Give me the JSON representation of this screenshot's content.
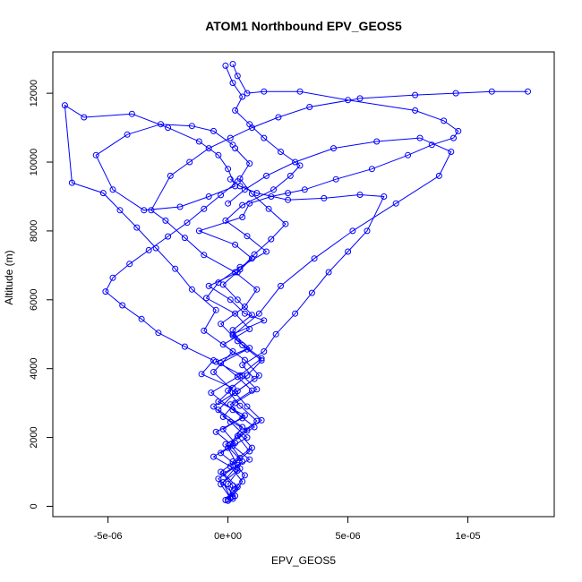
{
  "chart_data": {
    "type": "scatter",
    "title": "ATOM1 Northbound EPV_GEOS5",
    "xlabel": "EPV_GEOS5",
    "ylabel": "Altitude (m)",
    "xlim": [
      -7.3e-06,
      1.36e-05
    ],
    "ylim": [
      -300,
      13200
    ],
    "x_ticks": [
      {
        "value": -5e-06,
        "label": "-5e-06"
      },
      {
        "value": 0,
        "label": "0e+00"
      },
      {
        "value": 5e-06,
        "label": "5e-06"
      },
      {
        "value": 1e-05,
        "label": "1e-05"
      }
    ],
    "y_ticks": [
      {
        "value": 0,
        "label": "0"
      },
      {
        "value": 2000,
        "label": "2000"
      },
      {
        "value": 4000,
        "label": "4000"
      },
      {
        "value": 6000,
        "label": "6000"
      },
      {
        "value": 8000,
        "label": "8000"
      },
      {
        "value": 10000,
        "label": "10000"
      },
      {
        "value": 12000,
        "label": "12000"
      }
    ],
    "grid": false,
    "legend": "none",
    "colors": {
      "series": "#0000ff",
      "axes": "#000000",
      "background": "#ffffff"
    },
    "series": [
      {
        "x": [
          0.0,
          2e-07,
          -3e-07,
          5e-07,
          1e-07,
          8e-07,
          -2e-07,
          3e-07,
          1.2e-06,
          6e-07,
          -5e-07,
          9e-07,
          2e-07,
          1.5e-06,
          7e-07,
          1e-07,
          -8e-07,
          4e-07,
          1e-06,
          3e-07,
          -1.2e-06,
          6e-07,
          9e-07,
          1.8e-06,
          2.5e-06,
          3.2e-06,
          4.5e-06,
          6e-06,
          7.5e-06,
          8.5e-06,
          9.4e-06,
          9.6e-06,
          9e-06,
          7.8e-06,
          5e-06,
          3e-06,
          1.5e-06,
          8e-07,
          4e-07,
          2e-07
        ],
        "y": [
          200,
          600,
          1000,
          1400,
          1800,
          2200,
          2600,
          3000,
          3400,
          3800,
          4200,
          4600,
          5000,
          5400,
          5600,
          6000,
          6400,
          6800,
          7200,
          7600,
          8000,
          8400,
          8800,
          9000,
          9100,
          9200,
          9500,
          9800,
          10200,
          10500,
          10700,
          10900,
          11200,
          11500,
          11800,
          12050,
          12050,
          12000,
          12500,
          12850
        ]
      },
      {
        "x": [
          1e-07,
          -2e-07,
          4e-07,
          0.0,
          6e-07,
          -4e-07,
          3e-07,
          -6e-07,
          2e-07,
          -1e-06,
          -5e-07,
          -1.5e-06,
          -2.2e-06,
          -3e-06,
          -3.8e-06,
          -4.5e-06,
          -5.2e-06,
          -6.5e-06,
          -6.8e-06,
          -6e-06,
          -4e-06,
          -2.5e-06,
          -1.2e-06,
          -4e-07,
          0.0,
          3e-07,
          -8e-07,
          -2e-06,
          -3.5e-06,
          -4.8e-06,
          -5.5e-06,
          -4.2e-06,
          -2.8e-06,
          -1.5e-06,
          -6e-07,
          2e-07
        ],
        "y": [
          250,
          700,
          1200,
          1700,
          2300,
          2800,
          3300,
          3900,
          4500,
          5100,
          5700,
          6300,
          6900,
          7500,
          8100,
          8600,
          9100,
          9400,
          11650,
          11300,
          11400,
          11000,
          10600,
          10200,
          9800,
          9300,
          9000,
          8700,
          8600,
          9200,
          10200,
          10800,
          11100,
          11050,
          10900,
          10500
        ]
      },
      {
        "x": [
          -1e-07,
          3e-07,
          7e-07,
          2e-07,
          1e-06,
          5e-07,
          1.4e-06,
          8e-07,
          3e-07,
          1.1e-06,
          6e-07,
          1.5e-06,
          2e-06,
          2.8e-06,
          3.5e-06,
          4.2e-06,
          5e-06,
          5.8e-06,
          6.5e-06,
          5.5e-06,
          4e-06,
          2.5e-06,
          1.2e-06,
          5e-07,
          1e-07
        ],
        "y": [
          180,
          500,
          900,
          1300,
          1700,
          2100,
          2500,
          2900,
          3300,
          3700,
          4100,
          4500,
          5000,
          5600,
          6200,
          6800,
          7400,
          8000,
          9000,
          9050,
          8950,
          8900,
          9100,
          9300,
          9500
        ]
      },
      {
        "x": [
          2e-07,
          0.0,
          5e-07,
          -3e-07,
          8e-07,
          1e-07,
          -6e-07,
          4e-07,
          1.3e-06,
          7e-07,
          -2e-07,
          9e-07,
          3e-07,
          -9e-07,
          -4e-07,
          5e-07,
          1.6e-06,
          8e-07,
          -1e-07,
          6e-07,
          1.9e-06,
          2.6e-06,
          3e-06,
          2.2e-06,
          1.5e-06,
          9e-07,
          3e-07,
          6e-07,
          2e-07,
          -1e-07
        ],
        "y": [
          220,
          650,
          1100,
          1550,
          2000,
          2450,
          2900,
          3350,
          3800,
          4250,
          4700,
          5150,
          5600,
          6050,
          6500,
          6950,
          7400,
          7850,
          8300,
          8750,
          9200,
          9600,
          9900,
          10300,
          10700,
          11100,
          11500,
          11900,
          12300,
          12800
        ]
      },
      {
        "x": [
          3e-07,
          -4e-07,
          6e-07,
          -1e-07,
          1.1e-06,
          2e-07,
          -7e-07,
          5e-07,
          1.4e-06,
          4e-07,
          -3e-07,
          7e-07,
          1.2e-06,
          3e-07,
          -1e-06,
          -1.8e-06,
          -2.6e-06,
          -3.2e-06,
          -2.4e-06,
          -1.6e-06,
          -8e-07,
          1e-07,
          1e-06,
          2.1e-06,
          3.4e-06,
          5.5e-06,
          7.8e-06,
          9.5e-06,
          1.1e-05,
          1.25e-05
        ],
        "y": [
          300,
          800,
          1300,
          1800,
          2300,
          2800,
          3300,
          3800,
          4300,
          4800,
          5300,
          5800,
          6300,
          6800,
          7300,
          7800,
          8300,
          8600,
          9600,
          10000,
          10400,
          10700,
          11000,
          11300,
          11600,
          11850,
          11950,
          12000,
          12050,
          12050
        ]
      },
      {
        "x": [
          0.0,
          4e-07,
          -2e-07,
          9e-07,
          2e-07,
          -5e-07,
          6e-07,
          1e-07,
          1e-06,
          4e-07,
          -3e-07,
          8e-07,
          2e-07,
          1.3e-06,
          2.2e-06,
          3.6e-06,
          5.2e-06,
          7e-06,
          8.8e-06,
          9.3e-06,
          8e-06,
          6.2e-06,
          4.4e-06,
          2.8e-06,
          1.6e-06,
          7e-07,
          0.0
        ],
        "y": [
          160,
          560,
          960,
          1360,
          1760,
          2160,
          2560,
          2960,
          3360,
          3760,
          4160,
          4560,
          4960,
          5600,
          6400,
          7200,
          8000,
          8800,
          9600,
          10300,
          10700,
          10600,
          10400,
          10000,
          9600,
          9200,
          8800
        ]
      },
      {
        "x": [
          1e-07,
          -3e-07,
          4e-07,
          -6e-07,
          3e-07,
          -2e-07,
          7e-07,
          -4e-07,
          2e-07,
          -1.1e-06,
          -6e-07,
          -1.8e-06,
          -2.9e-06,
          -3.6e-06,
          -4.4e-06,
          -5.1e-06,
          -4.8e-06,
          -4.1e-06,
          -3.3e-06,
          -2.5e-06,
          -1.7e-06,
          -1e-06,
          -3e-07,
          4e-07
        ],
        "y": [
          240,
          640,
          1040,
          1440,
          1840,
          2240,
          2640,
          3040,
          3440,
          3840,
          4240,
          4640,
          5040,
          5440,
          5840,
          6240,
          6640,
          7040,
          7440,
          7840,
          8240,
          8640,
          9040,
          9440
        ]
      },
      {
        "x": [
          2e-07,
          6e-07,
          1e-07,
          9e-07,
          4e-07,
          1.2e-06,
          5e-07,
          0.0,
          8e-07,
          1.4e-06,
          6e-07,
          2e-07,
          1e-06,
          4e-07,
          -2e-07,
          5e-07,
          1.1e-06,
          1.8e-06,
          2.4e-06,
          1.7e-06,
          1e-06,
          5e-07,
          9e-07,
          3e-07
        ],
        "y": [
          280,
          720,
          1160,
          1600,
          2040,
          2480,
          2920,
          3360,
          3800,
          4240,
          4680,
          5120,
          5560,
          6000,
          6440,
          6880,
          7320,
          7760,
          8200,
          8640,
          9080,
          9520,
          9960,
          10400
        ]
      }
    ]
  }
}
